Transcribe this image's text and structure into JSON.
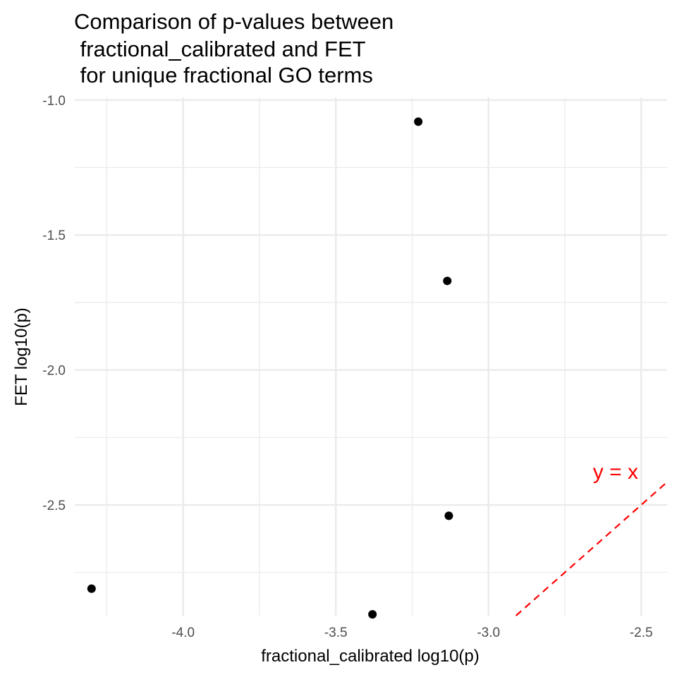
{
  "chart_data": {
    "type": "scatter",
    "title_lines": [
      "Comparison of p-values between",
      " fractional_calibrated and FET",
      " for unique fractional GO terms"
    ],
    "xlabel": "fractional_calibrated log10(p)",
    "ylabel": "FET log10(p)",
    "xlim": [
      -4.355,
      -2.415
    ],
    "ylim": [
      -2.91,
      -0.99
    ],
    "x_ticks": [
      -4.0,
      -3.5,
      -3.0,
      -2.5
    ],
    "x_tick_labels": [
      "-4.0",
      "-3.5",
      "-3.0",
      "-2.5"
    ],
    "y_ticks": [
      -1.0,
      -1.5,
      -2.0,
      -2.5
    ],
    "y_tick_labels": [
      "-1.0",
      "-1.5",
      "-2.0",
      "-2.5"
    ],
    "grid": true,
    "points": [
      {
        "x": -4.3,
        "y": -2.81
      },
      {
        "x": -3.23,
        "y": -1.08
      },
      {
        "x": -3.135,
        "y": -1.67
      },
      {
        "x": -3.13,
        "y": -2.54
      },
      {
        "x": -3.38,
        "y": -2.905
      }
    ],
    "reference_line": {
      "label": "y = x",
      "color": "#ff0000",
      "style": "dashed"
    },
    "point_color": "#000000",
    "grid_color": "#ebebeb"
  }
}
